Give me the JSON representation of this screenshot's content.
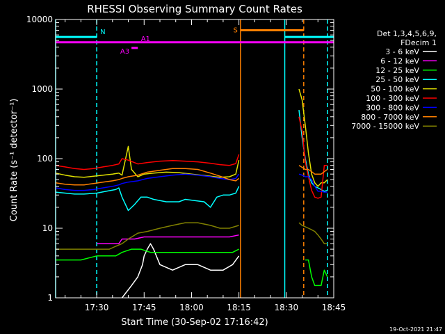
{
  "chart_data": {
    "type": "line",
    "title": "RHESSI Observing Summary Count Rates",
    "xlabel": "Start Time (30-Sep-02 17:16:42)",
    "ylabel": "Count Rate (s⁻¹ detector⁻¹)",
    "y_scale": "log",
    "ylim": [
      1,
      10000
    ],
    "xlim_minutes_after_17_00": [
      17,
      105
    ],
    "x_ticks": [
      {
        "label": "17:30",
        "minutes_after_17_00": 30
      },
      {
        "label": "17:45",
        "minutes_after_17_00": 45
      },
      {
        "label": "18:00",
        "minutes_after_17_00": 60
      },
      {
        "label": "18:15",
        "minutes_after_17_00": 75
      },
      {
        "label": "18:30",
        "minutes_after_17_00": 90
      },
      {
        "label": "18:45",
        "minutes_after_17_00": 105
      }
    ],
    "y_ticks": [
      {
        "label": "1",
        "value": 1
      },
      {
        "label": "10",
        "value": 10
      },
      {
        "label": "100",
        "value": 100
      },
      {
        "label": "1000",
        "value": 1000
      },
      {
        "label": "10000",
        "value": 10000
      }
    ],
    "legend_position": "right",
    "legend_header": [
      "Det 1,3,4,5,6,9,",
      "FDecim 1"
    ],
    "footer_date": "19-Oct-2021 21:47",
    "series": [
      {
        "name": "3 - 6 keV",
        "color": "#ffffff",
        "segments": [
          [
            [
              38,
              1
            ],
            [
              41,
              1.5
            ],
            [
              43,
              2
            ],
            [
              44.5,
              3
            ],
            [
              45,
              4
            ],
            [
              46,
              5
            ],
            [
              47,
              6
            ],
            [
              48,
              5
            ],
            [
              50,
              3
            ],
            [
              54,
              2.5
            ],
            [
              58,
              3
            ],
            [
              62,
              3
            ],
            [
              66,
              2.5
            ],
            [
              70,
              2.5
            ],
            [
              73,
              3
            ],
            [
              75,
              4
            ]
          ]
        ]
      },
      {
        "name": "6 - 12 keV",
        "color": "#ff00ff",
        "segments": [
          [
            [
              30,
              6
            ],
            [
              37,
              6
            ],
            [
              38,
              7
            ],
            [
              42,
              7
            ],
            [
              45,
              7.5
            ],
            [
              50,
              7.5
            ],
            [
              55,
              7.5
            ],
            [
              60,
              7.5
            ],
            [
              65,
              7.5
            ],
            [
              69,
              7.5
            ],
            [
              72,
              7.5
            ],
            [
              75,
              8
            ]
          ]
        ]
      },
      {
        "name": "12 - 25 keV",
        "color": "#00ff00",
        "segments": [
          [
            [
              17,
              3.5
            ],
            [
              25,
              3.5
            ],
            [
              30,
              4
            ],
            [
              36,
              4
            ],
            [
              38,
              4.5
            ],
            [
              41,
              5
            ],
            [
              44,
              5
            ],
            [
              47,
              4.5
            ],
            [
              52,
              4.5
            ],
            [
              58,
              4.5
            ],
            [
              64,
              4.5
            ],
            [
              69,
              4.5
            ],
            [
              73,
              4.5
            ],
            [
              75,
              5
            ]
          ],
          [
            [
              96,
              3.5
            ],
            [
              97,
              3.5
            ],
            [
              98,
              2
            ],
            [
              99,
              1.5
            ],
            [
              101,
              1.5
            ],
            [
              102,
              2.5
            ],
            [
              103,
              2
            ]
          ]
        ]
      },
      {
        "name": "25 - 50 keV",
        "color": "#00ffff",
        "segments": [
          [
            [
              17,
              33
            ],
            [
              20,
              32
            ],
            [
              23,
              31
            ],
            [
              26,
              31
            ],
            [
              30,
              32
            ],
            [
              33,
              34
            ],
            [
              36,
              36
            ],
            [
              37,
              38
            ],
            [
              38,
              28
            ],
            [
              40,
              18
            ],
            [
              42,
              22
            ],
            [
              44,
              28
            ],
            [
              46,
              28
            ],
            [
              48,
              26
            ],
            [
              52,
              24
            ],
            [
              56,
              24
            ],
            [
              58,
              26
            ],
            [
              61,
              25
            ],
            [
              64,
              24
            ],
            [
              66,
              20
            ],
            [
              68,
              28
            ],
            [
              70,
              30
            ],
            [
              72,
              30
            ],
            [
              74,
              32
            ],
            [
              75,
              40
            ]
          ],
          [
            [
              94,
              500
            ],
            [
              95,
              200
            ],
            [
              96,
              100
            ],
            [
              97,
              60
            ],
            [
              98,
              45
            ],
            [
              99,
              40
            ],
            [
              100,
              38
            ],
            [
              101,
              36
            ],
            [
              102,
              34
            ],
            [
              103,
              35
            ]
          ]
        ]
      },
      {
        "name": "50 - 100 keV",
        "color": "#e0e000",
        "segments": [
          [
            [
              17,
              62
            ],
            [
              20,
              58
            ],
            [
              23,
              55
            ],
            [
              26,
              54
            ],
            [
              29,
              56
            ],
            [
              32,
              58
            ],
            [
              35,
              60
            ],
            [
              37,
              62
            ],
            [
              38,
              58
            ],
            [
              40,
              150
            ],
            [
              41,
              70
            ],
            [
              43,
              55
            ],
            [
              45,
              60
            ],
            [
              48,
              62
            ],
            [
              52,
              64
            ],
            [
              56,
              63
            ],
            [
              60,
              60
            ],
            [
              63,
              58
            ],
            [
              66,
              56
            ],
            [
              69,
              54
            ],
            [
              72,
              55
            ],
            [
              74,
              60
            ],
            [
              75,
              95
            ]
          ],
          [
            [
              94,
              1000
            ],
            [
              95,
              700
            ],
            [
              96,
              300
            ],
            [
              97,
              120
            ],
            [
              98,
              60
            ],
            [
              99,
              45
            ],
            [
              100,
              40
            ],
            [
              101,
              45
            ],
            [
              102,
              45
            ],
            [
              103,
              50
            ]
          ]
        ]
      },
      {
        "name": "100 - 300 keV",
        "color": "#ff0000",
        "segments": [
          [
            [
              17,
              80
            ],
            [
              20,
              76
            ],
            [
              23,
              72
            ],
            [
              26,
              70
            ],
            [
              29,
              72
            ],
            [
              32,
              76
            ],
            [
              35,
              80
            ],
            [
              37,
              84
            ],
            [
              38,
              100
            ],
            [
              40,
              95
            ],
            [
              43,
              84
            ],
            [
              46,
              88
            ],
            [
              50,
              92
            ],
            [
              54,
              94
            ],
            [
              58,
              92
            ],
            [
              62,
              90
            ],
            [
              66,
              86
            ],
            [
              69,
              82
            ],
            [
              72,
              80
            ],
            [
              74,
              85
            ],
            [
              75,
              115
            ]
          ],
          [
            [
              94,
              400
            ],
            [
              95,
              250
            ],
            [
              96,
              90
            ],
            [
              97,
              55
            ],
            [
              98,
              35
            ],
            [
              99,
              28
            ],
            [
              100,
              27
            ],
            [
              101,
              28
            ],
            [
              102,
              80
            ],
            [
              103,
              80
            ]
          ]
        ]
      },
      {
        "name": "300 - 800 keV",
        "color": "#0000ff",
        "segments": [
          [
            [
              17,
              38
            ],
            [
              20,
              36
            ],
            [
              23,
              35
            ],
            [
              26,
              35
            ],
            [
              29,
              36
            ],
            [
              32,
              38
            ],
            [
              35,
              40
            ],
            [
              37,
              42
            ],
            [
              38,
              44
            ],
            [
              40,
              46
            ],
            [
              43,
              48
            ],
            [
              46,
              52
            ],
            [
              50,
              55
            ],
            [
              54,
              58
            ],
            [
              58,
              60
            ],
            [
              62,
              58
            ],
            [
              66,
              55
            ],
            [
              69,
              52
            ],
            [
              72,
              50
            ],
            [
              74,
              52
            ],
            [
              75,
              60
            ]
          ],
          [
            [
              94,
              60
            ],
            [
              95,
              58
            ],
            [
              96,
              55
            ],
            [
              97,
              55
            ],
            [
              98,
              50
            ],
            [
              99,
              40
            ],
            [
              100,
              34
            ],
            [
              101,
              34
            ],
            [
              102,
              33
            ],
            [
              103,
              33
            ]
          ]
        ]
      },
      {
        "name": "800 - 7000 keV",
        "color": "#ff8000",
        "segments": [
          [
            [
              17,
              45
            ],
            [
              20,
              43
            ],
            [
              23,
              42
            ],
            [
              26,
              42
            ],
            [
              29,
              44
            ],
            [
              32,
              46
            ],
            [
              35,
              48
            ],
            [
              37,
              50
            ],
            [
              38,
              52
            ],
            [
              40,
              55
            ],
            [
              43,
              58
            ],
            [
              46,
              64
            ],
            [
              50,
              68
            ],
            [
              54,
              72
            ],
            [
              58,
              72
            ],
            [
              62,
              70
            ],
            [
              66,
              62
            ],
            [
              69,
              56
            ],
            [
              72,
              50
            ],
            [
              74,
              48
            ],
            [
              75,
              52
            ]
          ],
          [
            [
              94,
              80
            ],
            [
              95,
              75
            ],
            [
              96,
              70
            ],
            [
              97,
              70
            ],
            [
              98,
              65
            ],
            [
              99,
              60
            ],
            [
              100,
              60
            ],
            [
              101,
              60
            ],
            [
              102,
              65
            ],
            [
              103,
              70
            ]
          ]
        ]
      },
      {
        "name": "7000 - 15000 keV",
        "color": "#808000",
        "segments": [
          [
            [
              17,
              5
            ],
            [
              20,
              5
            ],
            [
              23,
              5
            ],
            [
              26,
              5
            ],
            [
              30,
              5
            ],
            [
              34,
              5
            ],
            [
              36,
              5.5
            ],
            [
              38,
              6
            ],
            [
              40,
              7
            ],
            [
              43,
              8.5
            ],
            [
              46,
              9
            ],
            [
              50,
              10
            ],
            [
              54,
              11
            ],
            [
              58,
              12
            ],
            [
              62,
              12
            ],
            [
              66,
              11
            ],
            [
              69,
              10
            ],
            [
              72,
              10
            ],
            [
              75,
              11
            ]
          ],
          [
            [
              94,
              12
            ],
            [
              95,
              11
            ],
            [
              96,
              10.5
            ],
            [
              97,
              10
            ],
            [
              98,
              9.5
            ],
            [
              99,
              9
            ],
            [
              100,
              8
            ],
            [
              101,
              7
            ],
            [
              102,
              6
            ],
            [
              103,
              6
            ]
          ]
        ]
      }
    ],
    "annotations": [
      {
        "label": "N",
        "color": "#00ffff",
        "y": 5600,
        "segments": [
          [
            17,
            30
          ],
          [
            89.5,
            105
          ]
        ]
      },
      {
        "label": "A1",
        "color": "#ff00ff",
        "y": 4700,
        "segments": [
          [
            17,
            105
          ]
        ]
      },
      {
        "label": "A3",
        "color": "#ff00ff",
        "y": 3900,
        "segments": [
          [
            41,
            43
          ]
        ]
      },
      {
        "label": "S",
        "color": "#ff8000",
        "y": 7000,
        "segments": [
          [
            75.5,
            95.5
          ]
        ]
      }
    ],
    "vertical_markers": [
      {
        "color": "#00ffff",
        "x": 17,
        "style": "solid"
      },
      {
        "color": "#00ffff",
        "x": 30,
        "style": "dashed"
      },
      {
        "color": "#ff8000",
        "x": 75.5,
        "style": "solid"
      },
      {
        "color": "#00ffff",
        "x": 89.5,
        "style": "solid"
      },
      {
        "color": "#ff8000",
        "x": 95.5,
        "style": "dashed"
      },
      {
        "color": "#00ffff",
        "x": 103,
        "style": "dashed"
      }
    ]
  }
}
